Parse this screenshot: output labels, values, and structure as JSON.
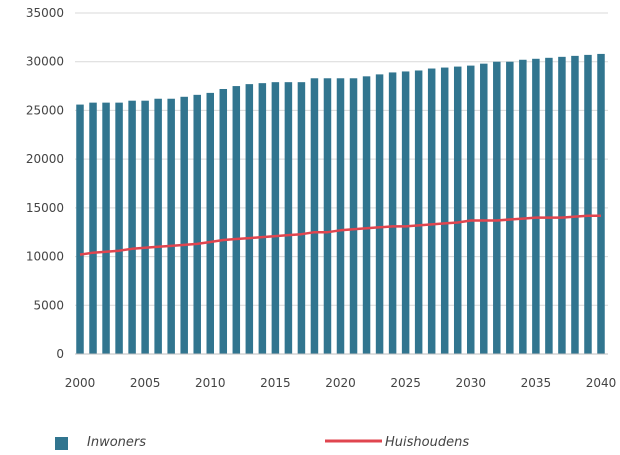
{
  "chart_data": {
    "type": "bar",
    "x": [
      2000,
      2001,
      2002,
      2003,
      2004,
      2005,
      2006,
      2007,
      2008,
      2009,
      2010,
      2011,
      2012,
      2013,
      2014,
      2015,
      2016,
      2017,
      2018,
      2019,
      2020,
      2021,
      2022,
      2023,
      2024,
      2025,
      2026,
      2027,
      2028,
      2029,
      2030,
      2031,
      2032,
      2033,
      2034,
      2035,
      2036,
      2037,
      2038,
      2039,
      2040
    ],
    "x_tick_labels": [
      "2000",
      "2005",
      "2010",
      "2015",
      "2020",
      "2025",
      "2030",
      "2035",
      "2040"
    ],
    "y_tick_labels": [
      "0",
      "5000",
      "10000",
      "15000",
      "20000",
      "25000",
      "30000",
      "35000"
    ],
    "ylim": [
      0,
      35000
    ],
    "grid": "horizontal",
    "legend_position": "bottom",
    "title": "",
    "xlabel": "",
    "ylabel": "",
    "series": [
      {
        "name": "Inwoners",
        "type": "bar",
        "color": "#31758f",
        "values": [
          25600,
          25800,
          25800,
          25800,
          26000,
          26000,
          26200,
          26200,
          26400,
          26600,
          26800,
          27200,
          27500,
          27700,
          27800,
          27900,
          27900,
          27900,
          28300,
          28300,
          28300,
          28300,
          28500,
          28700,
          28900,
          29000,
          29100,
          29300,
          29400,
          29500,
          29600,
          29800,
          30000,
          30000,
          30200,
          30300,
          30400,
          30500,
          30600,
          30700,
          30800
        ]
      },
      {
        "name": "Huishoudens",
        "type": "line",
        "color": "#e0454f",
        "values": [
          10200,
          10400,
          10500,
          10600,
          10800,
          10900,
          11000,
          11100,
          11200,
          11300,
          11500,
          11700,
          11800,
          11900,
          12000,
          12100,
          12200,
          12300,
          12500,
          12500,
          12700,
          12800,
          12900,
          13000,
          13100,
          13100,
          13200,
          13300,
          13400,
          13500,
          13700,
          13700,
          13700,
          13800,
          13900,
          14000,
          14000,
          14000,
          14100,
          14200,
          14200
        ]
      }
    ]
  }
}
